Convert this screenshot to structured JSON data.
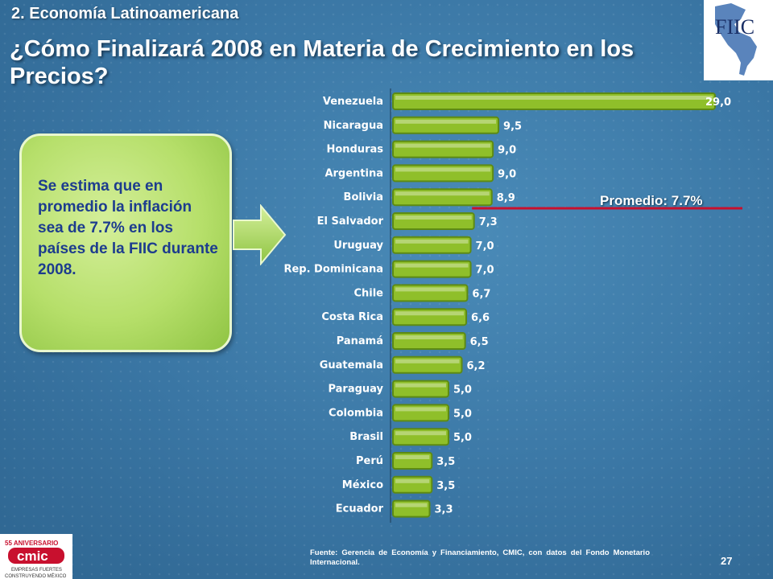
{
  "header": {
    "section": "2. Economía Latinoamericana",
    "title": "¿Cómo Finalizará 2008 en Materia de Crecimiento en los Precios?"
  },
  "callout": {
    "text": "Se estima que en promedio la inflación sea de 7.7% en los países de la  FIIC durante 2008."
  },
  "logos": {
    "fiic": "FIIC",
    "cmic_top": "55 ANIVERSARIO",
    "cmic": "cmic",
    "cmic_sub1": "EMPRESAS FUERTES",
    "cmic_sub2": "CONSTRUYENDO MÉXICO"
  },
  "footer": {
    "source": "Fuente: Gerencia de Economía y Financiamiento, CMIC, con datos del Fondo Monetario Internacional.",
    "page": "27"
  },
  "colors": {
    "bar": "#8fbf2a",
    "bar_dark": "#5d8a14",
    "average_line": "#c8102e"
  },
  "chart_data": {
    "type": "bar",
    "orientation": "horizontal",
    "categories": [
      "Venezuela",
      "Nicaragua",
      "Honduras",
      "Argentina",
      "Bolivia",
      "El Salvador",
      "Uruguay",
      "Rep. Dominicana",
      "Chile",
      "Costa Rica",
      "Panamá",
      "Guatemala",
      "Paraguay",
      "Colombia",
      "Brasil",
      "Perú",
      "México",
      "Ecuador"
    ],
    "values": [
      29.0,
      9.5,
      9.0,
      9.0,
      8.9,
      7.3,
      7.0,
      7.0,
      6.7,
      6.6,
      6.5,
      6.2,
      5.0,
      5.0,
      5.0,
      3.5,
      3.5,
      3.3
    ],
    "value_labels": [
      "29,0",
      "9,5",
      "9,0",
      "9,0",
      "8,9",
      "7,3",
      "7,0",
      "7,0",
      "6,7",
      "6,6",
      "6,5",
      "6,2",
      "5,0",
      "5,0",
      "5,0",
      "3,5",
      "3,5",
      "3,3"
    ],
    "xlim": [
      0,
      29
    ],
    "average": 7.7,
    "average_label": "Promedio: 7.7%",
    "title": "",
    "xlabel": "",
    "ylabel": ""
  }
}
